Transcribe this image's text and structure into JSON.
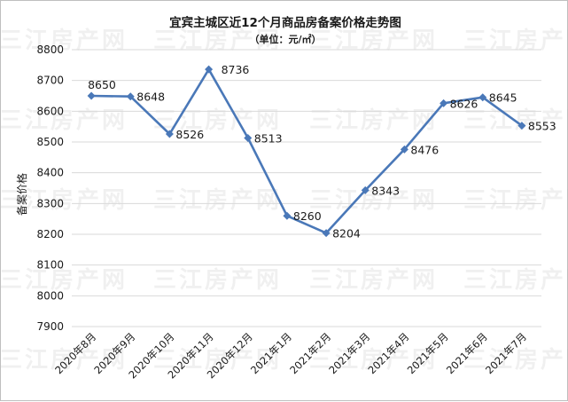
{
  "chart_data": {
    "type": "line",
    "title": "宜宾主城区近12个月商品房备案价格走势图",
    "subtitle": "（单位：元/㎡）",
    "ylabel": "备案价格",
    "xlabel": "",
    "categories": [
      "2020年8月",
      "2020年9月",
      "2020年10月",
      "2020年11月",
      "2020年12月",
      "2021年1月",
      "2021年2月",
      "2021年3月",
      "2021年4月",
      "2021年5月",
      "2021年6月",
      "2021年7月"
    ],
    "series": [
      {
        "values": [
          8650,
          8648,
          8526,
          8736,
          8513,
          8260,
          8204,
          8343,
          8476,
          8626,
          8645,
          8553
        ]
      }
    ],
    "ylim": [
      7900,
      8800
    ],
    "yticks": [
      7900,
      8000,
      8100,
      8200,
      8300,
      8400,
      8500,
      8600,
      8700,
      8800
    ],
    "grid": true,
    "legend": "none",
    "line_color": "#4a78b8"
  },
  "watermark": "三江房产网"
}
